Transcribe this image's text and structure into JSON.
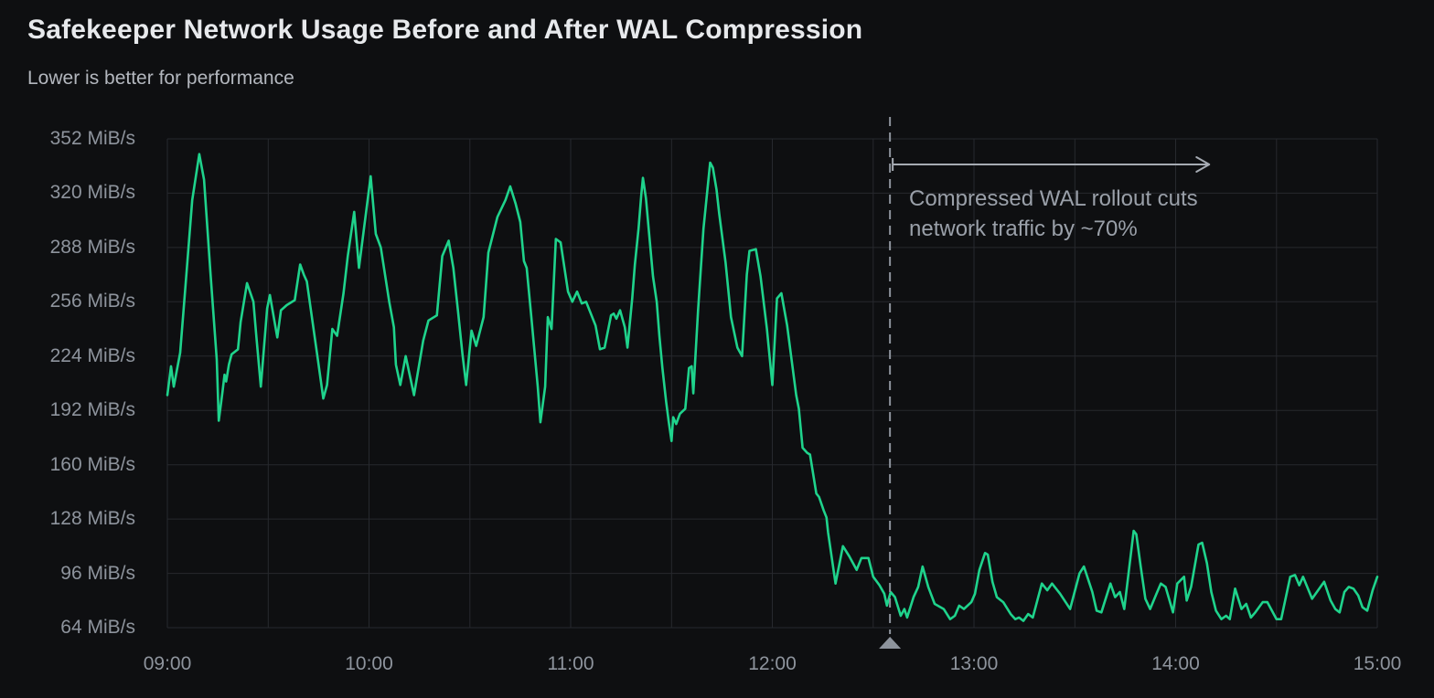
{
  "colors": {
    "background": "#0e0f11",
    "grid": "#27292e",
    "series": "#1fd38c",
    "axis_text": "#8e949d",
    "title_text": "#e7e9ec",
    "subtitle_text": "#b3b7be",
    "annotation_text": "#9aa0a9",
    "annotation_line": "#8d939c",
    "arrow": "#a6abb3"
  },
  "chart_data": {
    "type": "line",
    "title": "Safekeeper Network Usage Before and After WAL Compression",
    "subtitle": "Lower is better for performance",
    "unit": "MiB/s",
    "xlabel": "",
    "ylabel": "",
    "ylim": [
      64,
      352
    ],
    "x_range_minutes": [
      0,
      360
    ],
    "x_start_time": "09:00",
    "x_end_time": "15:00",
    "grid": true,
    "legend": false,
    "x_minor_grid_minutes": 30,
    "y_tick_values": [
      352,
      320,
      288,
      256,
      224,
      192,
      160,
      128,
      96,
      64
    ],
    "y_tick_labels": [
      "352 MiB/s",
      "320 MiB/s",
      "288 MiB/s",
      "256 MiB/s",
      "224 MiB/s",
      "192 MiB/s",
      "160 MiB/s",
      "128 MiB/s",
      "96 MiB/s",
      "64 MiB/s"
    ],
    "x_tick_labels": [
      "09:00",
      "10:00",
      "11:00",
      "12:00",
      "13:00",
      "14:00",
      "15:00"
    ],
    "annotation": {
      "line1": "Compressed WAL rollout cuts",
      "line2": "network traffic by ~70%",
      "marker_time": "12:35",
      "x_minutes": 215,
      "arrow_end_minutes": 310
    },
    "points": [
      [
        0,
        201
      ],
      [
        1.1,
        218
      ],
      [
        1.9,
        206
      ],
      [
        3.8,
        226
      ],
      [
        5.5,
        268
      ],
      [
        7.4,
        316
      ],
      [
        9.5,
        343
      ],
      [
        10.9,
        328
      ],
      [
        12.8,
        274
      ],
      [
        14.7,
        222
      ],
      [
        15.3,
        186
      ],
      [
        16.4,
        203
      ],
      [
        17,
        213
      ],
      [
        17.5,
        209
      ],
      [
        18.3,
        219
      ],
      [
        19.1,
        225
      ],
      [
        21,
        228
      ],
      [
        21.8,
        244
      ],
      [
        23.7,
        267
      ],
      [
        25.6,
        256
      ],
      [
        26.5,
        235
      ],
      [
        27.8,
        206
      ],
      [
        29.7,
        252
      ],
      [
        30.5,
        260
      ],
      [
        32.7,
        235
      ],
      [
        33.8,
        251
      ],
      [
        35.5,
        254
      ],
      [
        37.9,
        257
      ],
      [
        39.5,
        278
      ],
      [
        40.6,
        272
      ],
      [
        41.5,
        268
      ],
      [
        44.7,
        223
      ],
      [
        46.4,
        199
      ],
      [
        47.5,
        207
      ],
      [
        49.1,
        240
      ],
      [
        50.5,
        236
      ],
      [
        52.4,
        261
      ],
      [
        53.7,
        283
      ],
      [
        55.6,
        309
      ],
      [
        57,
        276
      ],
      [
        60.5,
        330
      ],
      [
        62,
        296
      ],
      [
        63.5,
        288
      ],
      [
        66,
        256
      ],
      [
        67.4,
        241
      ],
      [
        68,
        219
      ],
      [
        69.3,
        207
      ],
      [
        70.9,
        224
      ],
      [
        73.4,
        201
      ],
      [
        76.1,
        233
      ],
      [
        77.7,
        245
      ],
      [
        80.2,
        248
      ],
      [
        81.8,
        283
      ],
      [
        83.7,
        292
      ],
      [
        85.1,
        276
      ],
      [
        86.5,
        250
      ],
      [
        87.8,
        225
      ],
      [
        88.9,
        207
      ],
      [
        90.5,
        239
      ],
      [
        91.9,
        230
      ],
      [
        94.1,
        247
      ],
      [
        95.5,
        285
      ],
      [
        98.2,
        306
      ],
      [
        100.6,
        316
      ],
      [
        102,
        324
      ],
      [
        103.6,
        314
      ],
      [
        105,
        303
      ],
      [
        106.1,
        280
      ],
      [
        106.9,
        276
      ],
      [
        108.3,
        247
      ],
      [
        110.2,
        206
      ],
      [
        111,
        185
      ],
      [
        112.4,
        206
      ],
      [
        113.2,
        247
      ],
      [
        114.3,
        240
      ],
      [
        115.6,
        293
      ],
      [
        117,
        291
      ],
      [
        119.2,
        262
      ],
      [
        120.5,
        256
      ],
      [
        121.9,
        262
      ],
      [
        123.3,
        255
      ],
      [
        124.6,
        256
      ],
      [
        127.4,
        242
      ],
      [
        128.7,
        228
      ],
      [
        130.1,
        229
      ],
      [
        132,
        248
      ],
      [
        132.8,
        249
      ],
      [
        133.6,
        246
      ],
      [
        134.7,
        251
      ],
      [
        136.1,
        241
      ],
      [
        136.9,
        229
      ],
      [
        138.3,
        258
      ],
      [
        139.1,
        278
      ],
      [
        140.2,
        299
      ],
      [
        141,
        319
      ],
      [
        141.5,
        329
      ],
      [
        142.4,
        317
      ],
      [
        143.2,
        299
      ],
      [
        144.5,
        271
      ],
      [
        145.6,
        256
      ],
      [
        146.4,
        236
      ],
      [
        147.3,
        217
      ],
      [
        148.4,
        197
      ],
      [
        149.2,
        185
      ],
      [
        150,
        174
      ],
      [
        150.5,
        188
      ],
      [
        151.4,
        184
      ],
      [
        152.5,
        190
      ],
      [
        154.1,
        193
      ],
      [
        155.2,
        217
      ],
      [
        156,
        218
      ],
      [
        156.5,
        202
      ],
      [
        157.9,
        251
      ],
      [
        159.5,
        299
      ],
      [
        161.5,
        338
      ],
      [
        162.3,
        335
      ],
      [
        163.4,
        322
      ],
      [
        164.2,
        308
      ],
      [
        166.1,
        279
      ],
      [
        167.7,
        247
      ],
      [
        169.6,
        229
      ],
      [
        171,
        224
      ],
      [
        172.4,
        272
      ],
      [
        173.2,
        286
      ],
      [
        175.1,
        287
      ],
      [
        176.5,
        271
      ],
      [
        178.4,
        240
      ],
      [
        180,
        207
      ],
      [
        181.4,
        258
      ],
      [
        182.7,
        261
      ],
      [
        184.4,
        242
      ],
      [
        187.1,
        201
      ],
      [
        187.9,
        193
      ],
      [
        189,
        170
      ],
      [
        190.4,
        167
      ],
      [
        191.2,
        166
      ],
      [
        193.1,
        143
      ],
      [
        193.9,
        141
      ],
      [
        195.3,
        133
      ],
      [
        196.1,
        129
      ],
      [
        196.6,
        120
      ],
      [
        198.8,
        90
      ],
      [
        201,
        112
      ],
      [
        202.9,
        106
      ],
      [
        205.1,
        98
      ],
      [
        206.5,
        105
      ],
      [
        208.6,
        105
      ],
      [
        210,
        94
      ],
      [
        211.9,
        89
      ],
      [
        213.3,
        84
      ],
      [
        214.1,
        77
      ],
      [
        215.2,
        85
      ],
      [
        216.5,
        82
      ],
      [
        218.2,
        71
      ],
      [
        219.3,
        75
      ],
      [
        220.1,
        70
      ],
      [
        222,
        82
      ],
      [
        223.4,
        88
      ],
      [
        224.7,
        100
      ],
      [
        226.4,
        88
      ],
      [
        228.3,
        78
      ],
      [
        231,
        75
      ],
      [
        232.9,
        69
      ],
      [
        234.3,
        71
      ],
      [
        235.6,
        77
      ],
      [
        237,
        75
      ],
      [
        239.2,
        79
      ],
      [
        240.3,
        84
      ],
      [
        241.6,
        98
      ],
      [
        243.3,
        108
      ],
      [
        244.1,
        107
      ],
      [
        245.5,
        91
      ],
      [
        246.8,
        82
      ],
      [
        248.7,
        79
      ],
      [
        250.9,
        72
      ],
      [
        252.3,
        69
      ],
      [
        253.4,
        70
      ],
      [
        254.7,
        68
      ],
      [
        256.1,
        72
      ],
      [
        257.5,
        70
      ],
      [
        260.2,
        90
      ],
      [
        261.8,
        86
      ],
      [
        263.2,
        90
      ],
      [
        265.6,
        84
      ],
      [
        268.6,
        75
      ],
      [
        271.4,
        96
      ],
      [
        272.7,
        100
      ],
      [
        275.2,
        85
      ],
      [
        276.5,
        74
      ],
      [
        277.9,
        73
      ],
      [
        280.6,
        90
      ],
      [
        282,
        82
      ],
      [
        283.4,
        85
      ],
      [
        284.7,
        75
      ],
      [
        287.5,
        121
      ],
      [
        288.3,
        119
      ],
      [
        289.6,
        100
      ],
      [
        291,
        81
      ],
      [
        292.4,
        75
      ],
      [
        294.3,
        84
      ],
      [
        295.6,
        90
      ],
      [
        297,
        88
      ],
      [
        299.2,
        73
      ],
      [
        300.5,
        90
      ],
      [
        302.5,
        94
      ],
      [
        303.3,
        80
      ],
      [
        304.6,
        88
      ],
      [
        306.8,
        113
      ],
      [
        307.9,
        114
      ],
      [
        309.3,
        102
      ],
      [
        310.6,
        85
      ],
      [
        312,
        74
      ],
      [
        313.6,
        69
      ],
      [
        315,
        71
      ],
      [
        316.1,
        69
      ],
      [
        317.7,
        87
      ],
      [
        319.6,
        75
      ],
      [
        321,
        78
      ],
      [
        322.4,
        70
      ],
      [
        323.7,
        73
      ],
      [
        325.9,
        79
      ],
      [
        327.3,
        79
      ],
      [
        330,
        69
      ],
      [
        331.4,
        69
      ],
      [
        334.1,
        94
      ],
      [
        335.5,
        95
      ],
      [
        336.8,
        89
      ],
      [
        337.9,
        94
      ],
      [
        340.6,
        81
      ],
      [
        343.1,
        88
      ],
      [
        344.2,
        91
      ],
      [
        346.1,
        80
      ],
      [
        347.5,
        75
      ],
      [
        348.8,
        73
      ],
      [
        350.2,
        85
      ],
      [
        351.5,
        88
      ],
      [
        352.9,
        87
      ],
      [
        354.3,
        83
      ],
      [
        355.6,
        76
      ],
      [
        357,
        74
      ],
      [
        358.6,
        86
      ],
      [
        360,
        94
      ]
    ]
  }
}
